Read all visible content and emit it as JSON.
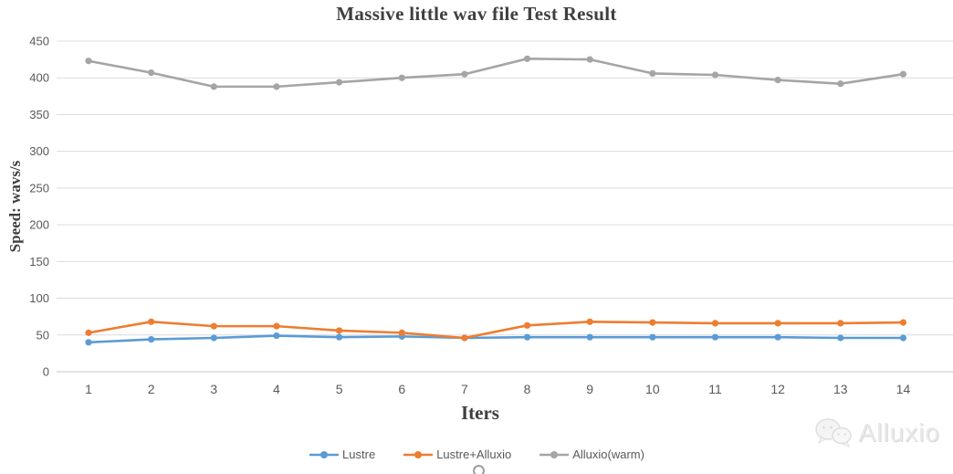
{
  "chart_data": {
    "type": "line",
    "title": "Massive little wav file Test Result",
    "xlabel": "Iters",
    "ylabel": "Speed: wavs/s",
    "categories": [
      "1",
      "2",
      "3",
      "4",
      "5",
      "6",
      "7",
      "8",
      "9",
      "10",
      "11",
      "12",
      "13",
      "14"
    ],
    "series": [
      {
        "name": "Lustre",
        "color": "#5B9BD5",
        "values": [
          40,
          44,
          46,
          49,
          47,
          48,
          46,
          47,
          47,
          47,
          47,
          47,
          46,
          46
        ]
      },
      {
        "name": "Lustre+Alluxio",
        "color": "#ED7D31",
        "values": [
          53,
          68,
          62,
          62,
          56,
          53,
          46,
          63,
          68,
          67,
          66,
          66,
          66,
          67
        ]
      },
      {
        "name": "Alluxio(warm)",
        "color": "#A5A5A5",
        "values": [
          423,
          407,
          388,
          388,
          394,
          400,
          405,
          426,
          425,
          406,
          404,
          397,
          392,
          405
        ]
      }
    ],
    "ylim": [
      0,
      450
    ],
    "ytick_step": 50,
    "grid": "horizontal",
    "legend_position": "bottom"
  },
  "colors": {
    "grid": "#dcdcdc",
    "axis_line": "#c8c8c8",
    "tick_text": "#595959",
    "title_text": "#3f3f3f",
    "watermark": "#e8e8e8"
  },
  "watermark": {
    "text": "Alluxio"
  }
}
